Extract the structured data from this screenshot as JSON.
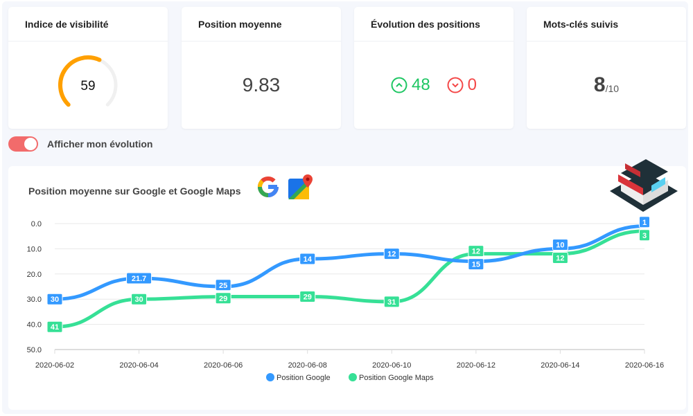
{
  "cards": [
    {
      "title": "Indice de visibilité",
      "value": "59",
      "gauge_percent": 59,
      "gauge_color": "#ffa000"
    },
    {
      "title": "Position moyenne",
      "value": "9.83"
    },
    {
      "title": "Évolution des positions",
      "up": "48",
      "down": "0",
      "up_color": "#1ec663",
      "down_color": "#f44848"
    },
    {
      "title": "Mots-clés suivis",
      "value": "8",
      "total": "/10"
    }
  ],
  "toggle": {
    "label": "Afficher mon évolution",
    "on": true,
    "color": "#f26b6b"
  },
  "chart_data": {
    "type": "line",
    "title": "Position moyenne sur Google et Google Maps",
    "x": [
      "2020-06-02",
      "2020-06-04",
      "2020-06-06",
      "2020-06-08",
      "2020-06-10",
      "2020-06-12",
      "2020-06-14",
      "2020-06-16"
    ],
    "yticks": [
      "0.0",
      "10.0",
      "20.0",
      "30.0",
      "40.0",
      "50.0"
    ],
    "ylim": [
      0,
      50
    ],
    "y_inverted": true,
    "grid": true,
    "legend": "bottom",
    "series": [
      {
        "name": "Position Google",
        "color": "#3399ff",
        "values": [
          30,
          21.7,
          25,
          14,
          12,
          15,
          10,
          1
        ]
      },
      {
        "name": "Position Google Maps",
        "color": "#36e096",
        "values": [
          41,
          30,
          29,
          29,
          31,
          12,
          12,
          3
        ]
      }
    ]
  }
}
